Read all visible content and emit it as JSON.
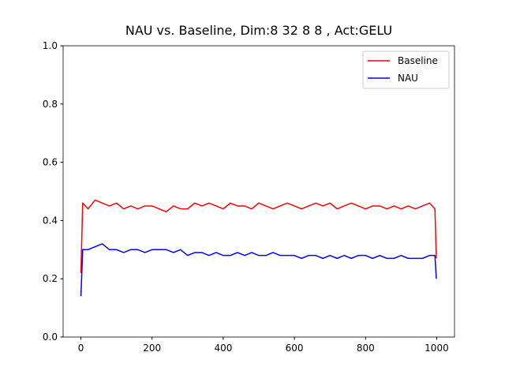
{
  "chart_data": {
    "type": "line",
    "title": "NAU vs. Baseline, Dim:8 32 8 8 , Act:GELU",
    "x": [
      0,
      5,
      20,
      40,
      60,
      80,
      100,
      120,
      140,
      160,
      180,
      200,
      220,
      240,
      260,
      280,
      300,
      320,
      340,
      360,
      380,
      400,
      420,
      440,
      460,
      480,
      500,
      520,
      540,
      560,
      580,
      600,
      620,
      640,
      660,
      680,
      700,
      720,
      740,
      760,
      780,
      800,
      820,
      840,
      860,
      880,
      900,
      920,
      940,
      960,
      980,
      995,
      999
    ],
    "series": [
      {
        "name": "Baseline",
        "color": "#ff0000",
        "values": [
          0.22,
          0.46,
          0.44,
          0.47,
          0.46,
          0.45,
          0.46,
          0.44,
          0.45,
          0.44,
          0.45,
          0.45,
          0.44,
          0.43,
          0.45,
          0.44,
          0.44,
          0.46,
          0.45,
          0.46,
          0.45,
          0.44,
          0.46,
          0.45,
          0.45,
          0.44,
          0.46,
          0.45,
          0.44,
          0.45,
          0.46,
          0.45,
          0.44,
          0.45,
          0.46,
          0.45,
          0.46,
          0.44,
          0.45,
          0.46,
          0.45,
          0.44,
          0.45,
          0.45,
          0.44,
          0.45,
          0.44,
          0.45,
          0.44,
          0.45,
          0.46,
          0.44,
          0.27
        ]
      },
      {
        "name": "NAU",
        "color": "#0000ff",
        "values": [
          0.14,
          0.3,
          0.3,
          0.31,
          0.32,
          0.3,
          0.3,
          0.29,
          0.3,
          0.3,
          0.29,
          0.3,
          0.3,
          0.3,
          0.29,
          0.3,
          0.28,
          0.29,
          0.29,
          0.28,
          0.29,
          0.28,
          0.28,
          0.29,
          0.28,
          0.29,
          0.28,
          0.28,
          0.29,
          0.28,
          0.28,
          0.28,
          0.27,
          0.28,
          0.28,
          0.27,
          0.28,
          0.27,
          0.28,
          0.27,
          0.28,
          0.28,
          0.27,
          0.28,
          0.27,
          0.27,
          0.28,
          0.27,
          0.27,
          0.27,
          0.28,
          0.28,
          0.2
        ]
      }
    ],
    "xlim": [
      -50,
      1050
    ],
    "xticks": [
      0,
      200,
      400,
      600,
      800,
      1000
    ],
    "ylim": [
      0,
      1
    ],
    "yticks": [
      {
        "value": 0,
        "label": "0.0"
      },
      0.2,
      0.4,
      0.6,
      0.8,
      {
        "value": 1,
        "label": "1.0"
      }
    ],
    "legend": "upper right"
  }
}
